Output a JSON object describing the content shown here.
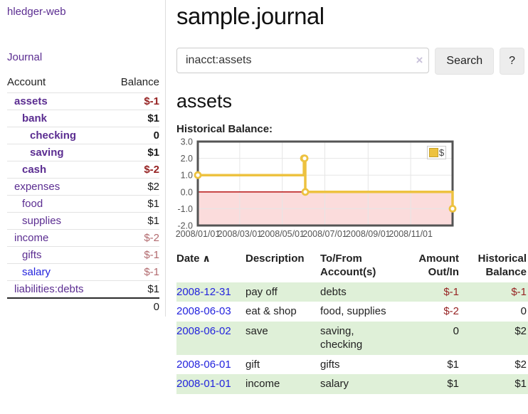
{
  "app": {
    "brand": "hledger-web",
    "nav": {
      "journal": "Journal"
    }
  },
  "sidebar": {
    "headers": {
      "account": "Account",
      "balance": "Balance"
    },
    "accounts": [
      {
        "name": "assets",
        "balance": "$-1",
        "indent": 1,
        "bold": true,
        "name_color": "purple",
        "balance_color": "red"
      },
      {
        "name": "bank",
        "balance": "$1",
        "indent": 2,
        "bold": true,
        "name_color": "purple",
        "balance_color": "black"
      },
      {
        "name": "checking",
        "balance": "0",
        "indent": 3,
        "bold": true,
        "name_color": "purple",
        "balance_color": "black"
      },
      {
        "name": "saving",
        "balance": "$1",
        "indent": 3,
        "bold": true,
        "name_color": "purple",
        "balance_color": "black"
      },
      {
        "name": "cash",
        "balance": "$-2",
        "indent": 2,
        "bold": true,
        "name_color": "purple",
        "balance_color": "red"
      },
      {
        "name": "expenses",
        "balance": "$2",
        "indent": 1,
        "bold": false,
        "name_color": "purple",
        "balance_color": "black"
      },
      {
        "name": "food",
        "balance": "$1",
        "indent": 2,
        "bold": false,
        "name_color": "purple",
        "balance_color": "black"
      },
      {
        "name": "supplies",
        "balance": "$1",
        "indent": 2,
        "bold": false,
        "name_color": "purple",
        "balance_color": "black"
      },
      {
        "name": "income",
        "balance": "$-2",
        "indent": 1,
        "bold": false,
        "name_color": "purple",
        "balance_color": "rose"
      },
      {
        "name": "gifts",
        "balance": "$-1",
        "indent": 2,
        "bold": false,
        "name_color": "purple",
        "balance_color": "rose"
      },
      {
        "name": "salary",
        "balance": "$-1",
        "indent": 2,
        "bold": false,
        "name_color": "blue",
        "balance_color": "rose"
      },
      {
        "name": "liabilities:debts",
        "balance": "$1",
        "indent": 1,
        "bold": false,
        "name_color": "purple",
        "balance_color": "black"
      }
    ],
    "total": "0"
  },
  "header": {
    "title": "sample.journal"
  },
  "search": {
    "value": "inacct:assets",
    "clear_icon": "×",
    "button_label": "Search",
    "help_label": "?"
  },
  "account_page": {
    "title": "assets",
    "chart_label": "Historical Balance:"
  },
  "chart_data": {
    "type": "line",
    "subtype": "step",
    "title": "Historical Balance",
    "series": [
      {
        "name": "$",
        "color": "#edc240",
        "points": [
          [
            "2008-01-01",
            1
          ],
          [
            "2008-06-01",
            2
          ],
          [
            "2008-06-02",
            2
          ],
          [
            "2008-06-03",
            0
          ],
          [
            "2008-12-31",
            -1
          ]
        ]
      }
    ],
    "xlim": [
      "2008-01-01",
      "2008-12-31"
    ],
    "ylim": [
      -2,
      3
    ],
    "yticks": [
      "3.0",
      "2.0",
      "1.0",
      "0.0",
      "-1.0",
      "-2.0"
    ],
    "xticks": [
      {
        "label": "2008/01/01",
        "date": "2008-01-01"
      },
      {
        "label": "2008/03/01",
        "date": "2008-03-01"
      },
      {
        "label": "2008/05/01",
        "date": "2008-05-01"
      },
      {
        "label": "2008/07/01",
        "date": "2008-07-01"
      },
      {
        "label": "2008/09/01",
        "date": "2008-09-01"
      },
      {
        "label": "2008/11/01",
        "date": "2008-11-01"
      }
    ],
    "grid": true,
    "legend_position": "top-right",
    "legend": {
      "label": "$",
      "swatch_color": "#edc240"
    },
    "negative_region": {
      "from": 0,
      "to": -2,
      "fill": "#fbdcdc",
      "line_color": "#b00000"
    },
    "border_color": "#545454"
  },
  "register": {
    "headers": {
      "date": "Date",
      "sort_icon": "∧",
      "description": "Description",
      "tofrom_line1": "To/From",
      "tofrom_line2": "Account(s)",
      "amount_line1": "Amount",
      "amount_line2": "Out/In",
      "balance_line1": "Historical",
      "balance_line2": "Balance"
    },
    "rows": [
      {
        "date": "2008-12-31",
        "description": "pay off",
        "accounts": "debts",
        "amount": "$-1",
        "amount_color": "red",
        "balance": "$-1",
        "balance_color": "red"
      },
      {
        "date": "2008-06-03",
        "description": "eat & shop",
        "accounts": "food, supplies",
        "amount": "$-2",
        "amount_color": "red",
        "balance": "0",
        "balance_color": "black"
      },
      {
        "date": "2008-06-02",
        "description": "save",
        "accounts": "saving, checking",
        "amount": "0",
        "amount_color": "black",
        "balance": "$2",
        "balance_color": "black"
      },
      {
        "date": "2008-06-01",
        "description": "gift",
        "accounts": "gifts",
        "amount": "$1",
        "amount_color": "black",
        "balance": "$2",
        "balance_color": "black"
      },
      {
        "date": "2008-01-01",
        "description": "income",
        "accounts": "salary",
        "amount": "$1",
        "amount_color": "black",
        "balance": "$1",
        "balance_color": "black"
      }
    ]
  },
  "colors": {
    "link_purple": "#5b2d91",
    "link_blue": "#2323dd",
    "negative_strong": "#962323",
    "negative_muted": "#b26a6e",
    "row_green": "#dff0d8",
    "series_yellow": "#edc240"
  }
}
